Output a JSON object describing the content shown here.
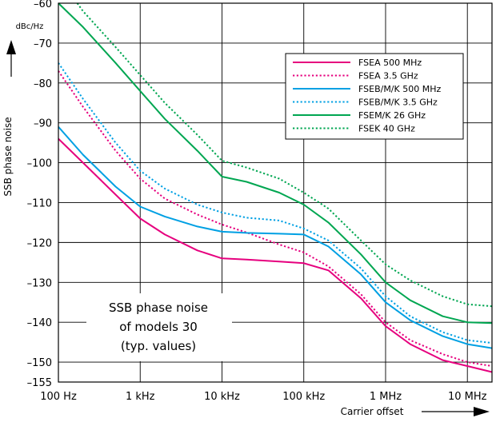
{
  "chart_data": {
    "type": "line",
    "title": "",
    "xlabel": "Carrier offset",
    "ylabel": "SSB phase noise",
    "y_unit": "dBc/Hz",
    "x_scale": "log",
    "xlim": [
      100,
      20000000
    ],
    "ylim": [
      -155,
      -60
    ],
    "x_ticks": [
      {
        "value": 100,
        "label": "100 Hz"
      },
      {
        "value": 1000,
        "label": "1 kHz"
      },
      {
        "value": 10000,
        "label": "10 kHz"
      },
      {
        "value": 100000,
        "label": "100 kHz"
      },
      {
        "value": 1000000,
        "label": "1 MHz"
      },
      {
        "value": 10000000,
        "label": "10 MHz"
      }
    ],
    "y_ticks": [
      {
        "value": -60,
        "label": "–60"
      },
      {
        "value": -70,
        "label": "–70"
      },
      {
        "value": -80,
        "label": "–80"
      },
      {
        "value": -90,
        "label": "–90"
      },
      {
        "value": -100,
        "label": "–100"
      },
      {
        "value": -110,
        "label": "–110"
      },
      {
        "value": -120,
        "label": "–120"
      },
      {
        "value": -130,
        "label": "–130"
      },
      {
        "value": -140,
        "label": "–140"
      },
      {
        "value": -150,
        "label": "–150"
      },
      {
        "value": -155,
        "label": "–155"
      }
    ],
    "grid": true,
    "legend_position": "top-right",
    "annotation": [
      "SSB phase noise",
      "of models 30",
      "(typ. values)"
    ],
    "series": [
      {
        "name": "FSEA 500 MHz",
        "color": "#e6007e",
        "dash": "solid",
        "x": [
          100,
          200,
          500,
          1000,
          2000,
          5000,
          10000,
          20000,
          50000,
          100000,
          200000,
          500000,
          1000000,
          2000000,
          5000000,
          10000000,
          20000000
        ],
        "y": [
          -94,
          -100,
          -108,
          -114,
          -118,
          -122,
          -124,
          -124.3,
          -124.8,
          -125.2,
          -127,
          -134,
          -141,
          -145.5,
          -149.5,
          -151,
          -152.5
        ]
      },
      {
        "name": "FSEA 3.5 GHz",
        "color": "#e6007e",
        "dash": "dotted",
        "x": [
          100,
          200,
          500,
          1000,
          2000,
          5000,
          10000,
          20000,
          50000,
          100000,
          200000,
          500000,
          1000000,
          2000000,
          5000000,
          10000000,
          20000000
        ],
        "y": [
          -77,
          -86,
          -97,
          -104,
          -109,
          -113,
          -115.5,
          -117.5,
          -120.5,
          -122.5,
          -126,
          -133,
          -140,
          -144.5,
          -148,
          -150,
          -151
        ]
      },
      {
        "name": "FSEB/M/K 500 MHz",
        "color": "#00a0e3",
        "dash": "solid",
        "x": [
          100,
          200,
          500,
          1000,
          2000,
          5000,
          10000,
          20000,
          50000,
          100000,
          200000,
          500000,
          1000000,
          2000000,
          5000000,
          10000000,
          20000000
        ],
        "y": [
          -91,
          -98,
          -106,
          -111,
          -113.5,
          -116,
          -117.3,
          -117.6,
          -117.8,
          -118,
          -121,
          -128,
          -135,
          -139.5,
          -143.5,
          -145.5,
          -146.5
        ]
      },
      {
        "name": "FSEB/M/K 3.5 GHz",
        "color": "#00a0e3",
        "dash": "dotted",
        "x": [
          100,
          200,
          500,
          1000,
          2000,
          5000,
          10000,
          20000,
          50000,
          100000,
          200000,
          500000,
          1000000,
          2000000,
          5000000,
          10000000,
          20000000
        ],
        "y": [
          -75,
          -84,
          -95,
          -102,
          -106.5,
          -110.5,
          -112.5,
          -113.8,
          -114.5,
          -116.5,
          -119.5,
          -126.5,
          -133.5,
          -138.5,
          -142.5,
          -144.5,
          -145.2
        ]
      },
      {
        "name": "FSEM/K 26 GHz",
        "color": "#00a651",
        "dash": "solid",
        "x": [
          100,
          200,
          500,
          1000,
          2000,
          5000,
          10000,
          20000,
          50000,
          100000,
          200000,
          500000,
          1000000,
          2000000,
          5000000,
          10000000,
          20000000
        ],
        "y": [
          -60,
          -66,
          -75,
          -82,
          -89,
          -97,
          -103.5,
          -104.8,
          -107.5,
          -110.5,
          -115,
          -123,
          -130,
          -134.5,
          -138.5,
          -140,
          -140.2
        ]
      },
      {
        "name": "FSEK 40 GHz",
        "color": "#00a651",
        "dash": "dotted",
        "x": [
          170,
          200,
          500,
          1000,
          2000,
          5000,
          10000,
          20000,
          50000,
          100000,
          200000,
          500000,
          1000000,
          2000000,
          5000000,
          10000000,
          20000000
        ],
        "y": [
          -60,
          -62,
          -71,
          -78,
          -85,
          -93,
          -99.5,
          -101.2,
          -104,
          -107.5,
          -111.5,
          -119.5,
          -125.5,
          -129.5,
          -133.5,
          -135.5,
          -136
        ]
      }
    ]
  }
}
